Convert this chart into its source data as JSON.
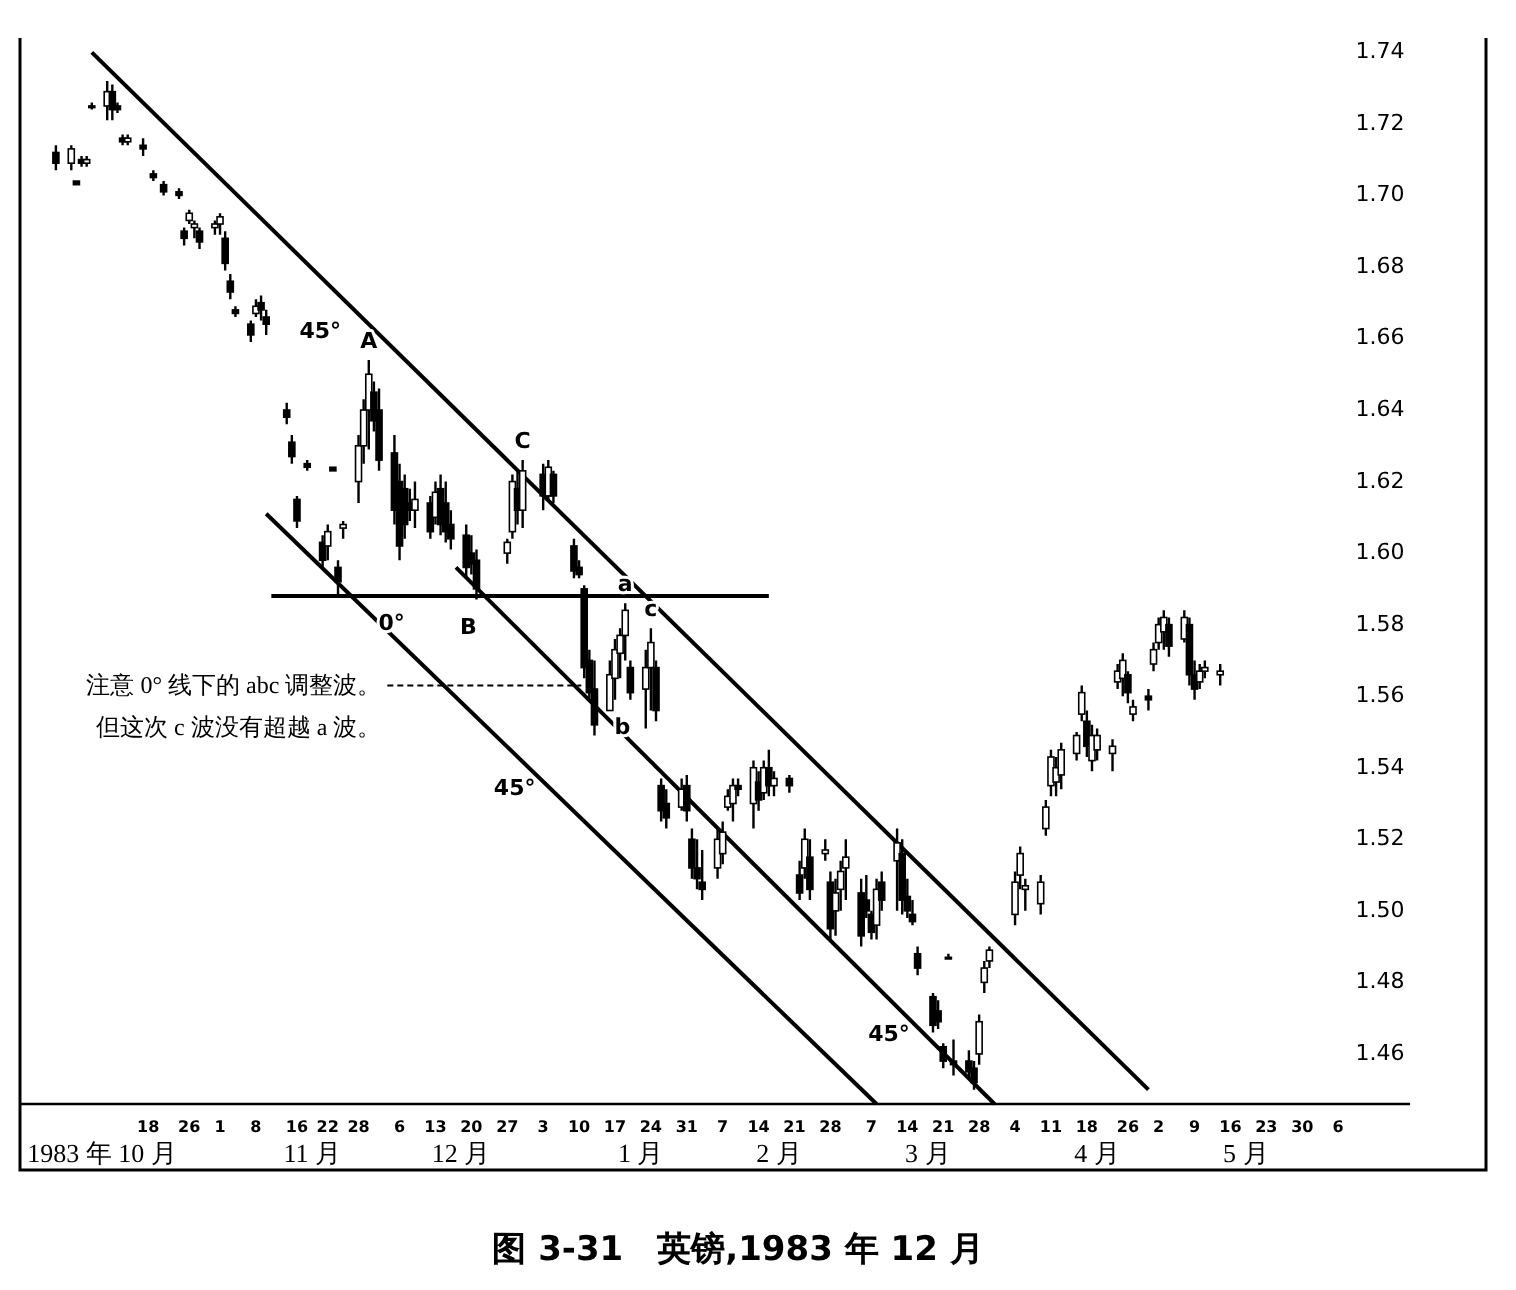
{
  "chart_data": {
    "type": "candlestick",
    "title": "图 3-31　英镑,1983 年 12 月",
    "color": "#000000",
    "xlim": [
      "1983-09-23",
      "1984-06-20"
    ],
    "ylim": [
      1.446,
      1.744
    ],
    "xticks": [
      {
        "value": "1983-10-18",
        "label": "18"
      },
      {
        "value": "1983-10-26",
        "label": "26"
      },
      {
        "value": "1983-11-01",
        "label": "1"
      },
      {
        "value": "1983-11-08",
        "label": "8"
      },
      {
        "value": "1983-11-16",
        "label": "16"
      },
      {
        "value": "1983-11-22",
        "label": "22"
      },
      {
        "value": "1983-11-28",
        "label": "28"
      },
      {
        "value": "1983-12-06",
        "label": "6"
      },
      {
        "value": "1983-12-13",
        "label": "13"
      },
      {
        "value": "1983-12-20",
        "label": "20"
      },
      {
        "value": "1983-12-27",
        "label": "27"
      },
      {
        "value": "1984-01-03",
        "label": "3"
      },
      {
        "value": "1984-01-10",
        "label": "10"
      },
      {
        "value": "1984-01-17",
        "label": "17"
      },
      {
        "value": "1984-01-24",
        "label": "24"
      },
      {
        "value": "1984-01-31",
        "label": "31"
      },
      {
        "value": "1984-02-07",
        "label": "7"
      },
      {
        "value": "1984-02-14",
        "label": "14"
      },
      {
        "value": "1984-02-21",
        "label": "21"
      },
      {
        "value": "1984-02-28",
        "label": "28"
      },
      {
        "value": "1984-03-07",
        "label": "7"
      },
      {
        "value": "1984-03-14",
        "label": "14"
      },
      {
        "value": "1984-03-21",
        "label": "21"
      },
      {
        "value": "1984-03-28",
        "label": "28"
      },
      {
        "value": "1984-04-04",
        "label": "4"
      },
      {
        "value": "1984-04-11",
        "label": "11"
      },
      {
        "value": "1984-04-18",
        "label": "18"
      },
      {
        "value": "1984-04-26",
        "label": "26"
      },
      {
        "value": "1984-05-02",
        "label": "2"
      },
      {
        "value": "1984-05-09",
        "label": "9"
      },
      {
        "value": "1984-05-16",
        "label": "16"
      },
      {
        "value": "1984-05-23",
        "label": "23"
      },
      {
        "value": "1984-05-30",
        "label": "30"
      },
      {
        "value": "1984-06-06",
        "label": "6"
      }
    ],
    "yticks": [
      {
        "value": 1.46,
        "label": "1.46"
      },
      {
        "value": 1.48,
        "label": "1.48"
      },
      {
        "value": 1.5,
        "label": "1.50"
      },
      {
        "value": 1.52,
        "label": "1.52"
      },
      {
        "value": 1.54,
        "label": "1.54"
      },
      {
        "value": 1.56,
        "label": "1.56"
      },
      {
        "value": 1.58,
        "label": "1.58"
      },
      {
        "value": 1.6,
        "label": "1.60"
      },
      {
        "value": 1.62,
        "label": "1.62"
      },
      {
        "value": 1.64,
        "label": "1.64"
      },
      {
        "value": 1.66,
        "label": "1.66"
      },
      {
        "value": 1.68,
        "label": "1.68"
      },
      {
        "value": 1.7,
        "label": "1.70"
      },
      {
        "value": 1.72,
        "label": "1.72"
      },
      {
        "value": 1.74,
        "label": "1.74"
      }
    ],
    "x": [
      "1983-09-30",
      "1983-10-03",
      "1983-10-04",
      "1983-10-05",
      "1983-10-06",
      "1983-10-07",
      "1983-10-10",
      "1983-10-11",
      "1983-10-12",
      "1983-10-13",
      "1983-10-14",
      "1983-10-17",
      "1983-10-19",
      "1983-10-21",
      "1983-10-24",
      "1983-10-25",
      "1983-10-26",
      "1983-10-27",
      "1983-10-28",
      "1983-10-31",
      "1983-11-01",
      "1983-11-02",
      "1983-11-03",
      "1983-11-04",
      "1983-11-07",
      "1983-11-08",
      "1983-11-09",
      "1983-11-10",
      "1983-11-14",
      "1983-11-15",
      "1983-11-16",
      "1983-11-18",
      "1983-11-21",
      "1983-11-22",
      "1983-11-23",
      "1983-11-24",
      "1983-11-25",
      "1983-11-28",
      "1983-11-29",
      "1983-11-30",
      "1983-12-01",
      "1983-12-02",
      "1983-12-05",
      "1983-12-06",
      "1983-12-07",
      "1983-12-08",
      "1983-12-09",
      "1983-12-12",
      "1983-12-13",
      "1983-12-14",
      "1983-12-15",
      "1983-12-16",
      "1983-12-19",
      "1983-12-20",
      "1983-12-21",
      "1983-12-27",
      "1983-12-28",
      "1983-12-29",
      "1983-12-30",
      "1984-01-03",
      "1984-01-04",
      "1984-01-05",
      "1984-01-09",
      "1984-01-10",
      "1984-01-11",
      "1984-01-12",
      "1984-01-13",
      "1984-01-16",
      "1984-01-17",
      "1984-01-18",
      "1984-01-19",
      "1984-01-20",
      "1984-01-23",
      "1984-01-24",
      "1984-01-25",
      "1984-01-26",
      "1984-01-27",
      "1984-01-30",
      "1984-01-31",
      "1984-02-01",
      "1984-02-02",
      "1984-02-03",
      "1984-02-06",
      "1984-02-07",
      "1984-02-08",
      "1984-02-09",
      "1984-02-10",
      "1984-02-13",
      "1984-02-14",
      "1984-02-15",
      "1984-02-16",
      "1984-02-17",
      "1984-02-20",
      "1984-02-22",
      "1984-02-23",
      "1984-02-24",
      "1984-02-27",
      "1984-02-28",
      "1984-02-29",
      "1984-03-01",
      "1984-03-02",
      "1984-03-05",
      "1984-03-06",
      "1984-03-07",
      "1984-03-08",
      "1984-03-09",
      "1984-03-12",
      "1984-03-13",
      "1984-03-14",
      "1984-03-15",
      "1984-03-16",
      "1984-03-19",
      "1984-03-20",
      "1984-03-21",
      "1984-03-22",
      "1984-03-23",
      "1984-03-26",
      "1984-03-27",
      "1984-03-28",
      "1984-03-29",
      "1984-03-30",
      "1984-04-04",
      "1984-04-05",
      "1984-04-06",
      "1984-04-09",
      "1984-04-10",
      "1984-04-11",
      "1984-04-12",
      "1984-04-13",
      "1984-04-16",
      "1984-04-17",
      "1984-04-18",
      "1984-04-19",
      "1984-04-20",
      "1984-04-23",
      "1984-04-24",
      "1984-04-25",
      "1984-04-26",
      "1984-04-27",
      "1984-04-30",
      "1984-05-01",
      "1984-05-02",
      "1984-05-03",
      "1984-05-04",
      "1984-05-07",
      "1984-05-08",
      "1984-05-09",
      "1984-05-10",
      "1984-05-11",
      "1984-05-14"
    ],
    "ohlc": [
      [
        1.712,
        1.714,
        1.707,
        1.709
      ],
      [
        1.709,
        1.714,
        1.707,
        1.713
      ],
      [
        1.704,
        1.704,
        1.703,
        1.703
      ],
      [
        1.71,
        1.711,
        1.708,
        1.709
      ],
      [
        1.709,
        1.711,
        1.708,
        1.71
      ],
      [
        1.725,
        1.726,
        1.724,
        1.725
      ],
      [
        1.725,
        1.732,
        1.721,
        1.729
      ],
      [
        1.729,
        1.731,
        1.721,
        1.724
      ],
      [
        1.725,
        1.726,
        1.723,
        1.724
      ],
      [
        1.716,
        1.717,
        1.714,
        1.715
      ],
      [
        1.715,
        1.717,
        1.714,
        1.716
      ],
      [
        1.714,
        1.716,
        1.711,
        1.713
      ],
      [
        1.706,
        1.707,
        1.704,
        1.705
      ],
      [
        1.703,
        1.704,
        1.7,
        1.701
      ],
      [
        1.701,
        1.702,
        1.699,
        1.7
      ],
      [
        1.69,
        1.691,
        1.686,
        1.688
      ],
      [
        1.693,
        1.696,
        1.692,
        1.695
      ],
      [
        1.691,
        1.693,
        1.688,
        1.692
      ],
      [
        1.69,
        1.691,
        1.685,
        1.687
      ],
      [
        1.691,
        1.693,
        1.689,
        1.692
      ],
      [
        1.692,
        1.695,
        1.689,
        1.694
      ],
      [
        1.688,
        1.69,
        1.679,
        1.681
      ],
      [
        1.676,
        1.678,
        1.671,
        1.673
      ],
      [
        1.668,
        1.669,
        1.666,
        1.667
      ],
      [
        1.664,
        1.665,
        1.659,
        1.661
      ],
      [
        1.667,
        1.671,
        1.666,
        1.669
      ],
      [
        1.67,
        1.672,
        1.665,
        1.668
      ],
      [
        1.666,
        1.668,
        1.661,
        1.664
      ],
      [
        1.64,
        1.642,
        1.636,
        1.638
      ],
      [
        1.631,
        1.633,
        1.625,
        1.627
      ],
      [
        1.615,
        1.616,
        1.607,
        1.609
      ],
      [
        1.625,
        1.626,
        1.623,
        1.624
      ],
      [
        1.603,
        1.605,
        1.596,
        1.598
      ],
      [
        1.602,
        1.608,
        1.598,
        1.606
      ],
      [
        1.624,
        1.624,
        1.623,
        1.623
      ],
      [
        1.596,
        1.598,
        1.588,
        1.592
      ],
      [
        1.607,
        1.609,
        1.604,
        1.608
      ],
      [
        1.62,
        1.633,
        1.614,
        1.63
      ],
      [
        1.63,
        1.643,
        1.625,
        1.64
      ],
      [
        1.64,
        1.654,
        1.629,
        1.65
      ],
      [
        1.645,
        1.648,
        1.634,
        1.637
      ],
      [
        1.64,
        1.646,
        1.623,
        1.626
      ],
      [
        1.628,
        1.633,
        1.608,
        1.612
      ],
      [
        1.62,
        1.625,
        1.598,
        1.602
      ],
      [
        1.618,
        1.622,
        1.604,
        1.608
      ],
      [
        1.614,
        1.618,
        1.609,
        1.612
      ],
      [
        1.612,
        1.62,
        1.607,
        1.615
      ],
      [
        1.614,
        1.616,
        1.604,
        1.606
      ],
      [
        1.61,
        1.62,
        1.608,
        1.617
      ],
      [
        1.618,
        1.622,
        1.605,
        1.608
      ],
      [
        1.614,
        1.62,
        1.603,
        1.606
      ],
      [
        1.608,
        1.612,
        1.601,
        1.604
      ],
      [
        1.605,
        1.608,
        1.593,
        1.596
      ],
      [
        1.6,
        1.605,
        1.594,
        1.597
      ],
      [
        1.598,
        1.601,
        1.587,
        1.59
      ],
      [
        1.6,
        1.604,
        1.597,
        1.603
      ],
      [
        1.606,
        1.622,
        1.604,
        1.62
      ],
      [
        1.618,
        1.623,
        1.608,
        1.612
      ],
      [
        1.612,
        1.626,
        1.607,
        1.623
      ],
      [
        1.622,
        1.625,
        1.612,
        1.616
      ],
      [
        1.616,
        1.626,
        1.615,
        1.624
      ],
      [
        1.622,
        1.623,
        1.614,
        1.616
      ],
      [
        1.602,
        1.604,
        1.593,
        1.595
      ],
      [
        1.596,
        1.598,
        1.593,
        1.594
      ],
      [
        1.59,
        1.591,
        1.565,
        1.568
      ],
      [
        1.57,
        1.573,
        1.559,
        1.561
      ],
      [
        1.562,
        1.57,
        1.549,
        1.552
      ],
      [
        1.556,
        1.57,
        1.556,
        1.566
      ],
      [
        1.565,
        1.576,
        1.559,
        1.573
      ],
      [
        1.572,
        1.579,
        1.565,
        1.577
      ],
      [
        1.577,
        1.586,
        1.57,
        1.584
      ],
      [
        1.568,
        1.57,
        1.559,
        1.561
      ],
      [
        1.562,
        1.573,
        1.551,
        1.568
      ],
      [
        1.568,
        1.579,
        1.556,
        1.575
      ],
      [
        1.568,
        1.57,
        1.553,
        1.556
      ],
      [
        1.535,
        1.537,
        1.525,
        1.528
      ],
      [
        1.53,
        1.534,
        1.523,
        1.526
      ],
      [
        1.529,
        1.537,
        1.528,
        1.534
      ],
      [
        1.535,
        1.538,
        1.525,
        1.528
      ],
      [
        1.52,
        1.523,
        1.509,
        1.512
      ],
      [
        1.512,
        1.52,
        1.506,
        1.509
      ],
      [
        1.508,
        1.517,
        1.503,
        1.506
      ],
      [
        1.512,
        1.523,
        1.509,
        1.52
      ],
      [
        1.516,
        1.525,
        1.513,
        1.522
      ],
      [
        1.529,
        1.534,
        1.528,
        1.532
      ],
      [
        1.53,
        1.537,
        1.525,
        1.535
      ],
      [
        1.535,
        1.537,
        1.532,
        1.534
      ],
      [
        1.53,
        1.542,
        1.523,
        1.54
      ],
      [
        1.536,
        1.539,
        1.528,
        1.531
      ],
      [
        1.533,
        1.542,
        1.531,
        1.54
      ],
      [
        1.54,
        1.545,
        1.532,
        1.535
      ],
      [
        1.535,
        1.539,
        1.532,
        1.537
      ],
      [
        1.537,
        1.538,
        1.533,
        1.535
      ],
      [
        1.51,
        1.514,
        1.503,
        1.505
      ],
      [
        1.512,
        1.523,
        1.509,
        1.52
      ],
      [
        1.515,
        1.52,
        1.503,
        1.506
      ],
      [
        1.516,
        1.52,
        1.514,
        1.517
      ],
      [
        1.508,
        1.511,
        1.492,
        1.495
      ],
      [
        1.5,
        1.509,
        1.493,
        1.505
      ],
      [
        1.506,
        1.514,
        1.5,
        1.511
      ],
      [
        1.512,
        1.52,
        1.503,
        1.515
      ],
      [
        1.505,
        1.509,
        1.49,
        1.493
      ],
      [
        1.503,
        1.51,
        1.498,
        1.5
      ],
      [
        1.499,
        1.5,
        1.492,
        1.494
      ],
      [
        1.496,
        1.509,
        1.492,
        1.506
      ],
      [
        1.508,
        1.511,
        1.5,
        1.503
      ],
      [
        1.514,
        1.523,
        1.5,
        1.519
      ],
      [
        1.516,
        1.52,
        1.499,
        1.503
      ],
      [
        1.504,
        1.509,
        1.498,
        1.5
      ],
      [
        1.499,
        1.503,
        1.496,
        1.497
      ],
      [
        1.488,
        1.49,
        1.482,
        1.484
      ],
      [
        1.476,
        1.477,
        1.466,
        1.468
      ],
      [
        1.472,
        1.475,
        1.467,
        1.469
      ],
      [
        1.462,
        1.463,
        1.456,
        1.458
      ],
      [
        1.487,
        1.488,
        1.487,
        1.487
      ],
      [
        1.458,
        1.464,
        1.454,
        1.457
      ],
      [
        1.458,
        1.461,
        1.453,
        1.455
      ],
      [
        1.456,
        1.458,
        1.45,
        1.452
      ],
      [
        1.46,
        1.471,
        1.457,
        1.469
      ],
      [
        1.48,
        1.486,
        1.477,
        1.484
      ],
      [
        1.486,
        1.49,
        1.484,
        1.489
      ],
      [
        1.499,
        1.511,
        1.496,
        1.508
      ],
      [
        1.51,
        1.518,
        1.506,
        1.516
      ],
      [
        1.506,
        1.509,
        1.5,
        1.507
      ],
      [
        1.502,
        1.51,
        1.499,
        1.508
      ],
      [
        1.523,
        1.531,
        1.521,
        1.529
      ],
      [
        1.535,
        1.545,
        1.532,
        1.543
      ],
      [
        1.536,
        1.543,
        1.532,
        1.54
      ],
      [
        1.538,
        1.547,
        1.534,
        1.545
      ],
      [
        1.544,
        1.55,
        1.542,
        1.549
      ],
      [
        1.555,
        1.563,
        1.553,
        1.561
      ],
      [
        1.553,
        1.556,
        1.543,
        1.546
      ],
      [
        1.542,
        1.552,
        1.539,
        1.549
      ],
      [
        1.545,
        1.551,
        1.542,
        1.549
      ],
      [
        1.544,
        1.548,
        1.539,
        1.546
      ],
      [
        1.564,
        1.569,
        1.562,
        1.567
      ],
      [
        1.565,
        1.572,
        1.56,
        1.57
      ],
      [
        1.566,
        1.567,
        1.558,
        1.561
      ],
      [
        1.555,
        1.559,
        1.553,
        1.557
      ],
      [
        1.56,
        1.562,
        1.556,
        1.559
      ],
      [
        1.569,
        1.575,
        1.567,
        1.573
      ],
      [
        1.575,
        1.582,
        1.573,
        1.58
      ],
      [
        1.578,
        1.584,
        1.573,
        1.582
      ],
      [
        1.58,
        1.582,
        1.571,
        1.574
      ],
      [
        1.576,
        1.584,
        1.575,
        1.582
      ],
      [
        1.58,
        1.582,
        1.563,
        1.566
      ],
      [
        1.566,
        1.57,
        1.559,
        1.562
      ],
      [
        1.564,
        1.569,
        1.562,
        1.567
      ],
      [
        1.567,
        1.57,
        1.565,
        1.568
      ],
      [
        1.566,
        1.569,
        1.563,
        1.567
      ]
    ],
    "series": [
      {
        "type": "line",
        "color": "#000000",
        "x": [
          "1983-10-07",
          "1984-04-30"
        ],
        "values": [
          1.74,
          1.45
        ]
      },
      {
        "type": "line",
        "color": "#000000",
        "x": [
          "1983-11-10",
          "1984-03-08"
        ],
        "values": [
          1.611,
          1.446
        ]
      },
      {
        "type": "line",
        "color": "#000000",
        "x": [
          "1983-12-17",
          "1984-03-31"
        ],
        "values": [
          1.596,
          1.446
        ]
      },
      {
        "type": "line",
        "color": "#000000",
        "x": [
          "1983-11-11",
          "1984-02-16"
        ],
        "values": [
          1.588,
          1.588
        ]
      }
    ],
    "annotations": [
      {
        "text": "A",
        "x": "1983-11-30",
        "y": 1.654
      },
      {
        "text": "B",
        "x": "1983-12-21",
        "y": 1.587
      },
      {
        "text": "C",
        "x": "1983-12-30",
        "y": 1.626
      },
      {
        "text": "a",
        "x": "1984-01-19",
        "y": 1.586
      },
      {
        "text": "b",
        "x": "1984-01-20",
        "y": 1.559
      },
      {
        "text": "c",
        "x": "1984-01-24",
        "y": 1.579
      },
      {
        "text": "0°",
        "x": "1983-12-06",
        "y": 1.588
      },
      {
        "text": "45°",
        "x": "1983-11-26",
        "y": 1.669
      },
      {
        "text": "45°",
        "x": "1983-12-30",
        "y": 1.542
      },
      {
        "text": "45°",
        "x": "1984-03-12",
        "y": 1.473
      },
      {
        "text": "注意 0° 线下的 abc 调整波。但这次 c 波没有超越 a 波。",
        "x": "1984-01-12",
        "y": 1.563
      }
    ],
    "x2lim": [
      "1983-09-23",
      "1984-06-20"
    ],
    "x2ticks": [
      {
        "value": "1983-10-09",
        "label": "1983 年 10 月"
      },
      {
        "value": "1983-11-19",
        "label": "11 月"
      },
      {
        "value": "1983-12-18",
        "label": "12 月"
      },
      {
        "value": "1984-01-22",
        "label": "1 月"
      },
      {
        "value": "1984-02-18",
        "label": "2 月"
      },
      {
        "value": "1984-03-18",
        "label": "3 月"
      },
      {
        "value": "1984-04-20",
        "label": "4 月"
      },
      {
        "value": "1984-05-19",
        "label": "5 月"
      }
    ]
  }
}
